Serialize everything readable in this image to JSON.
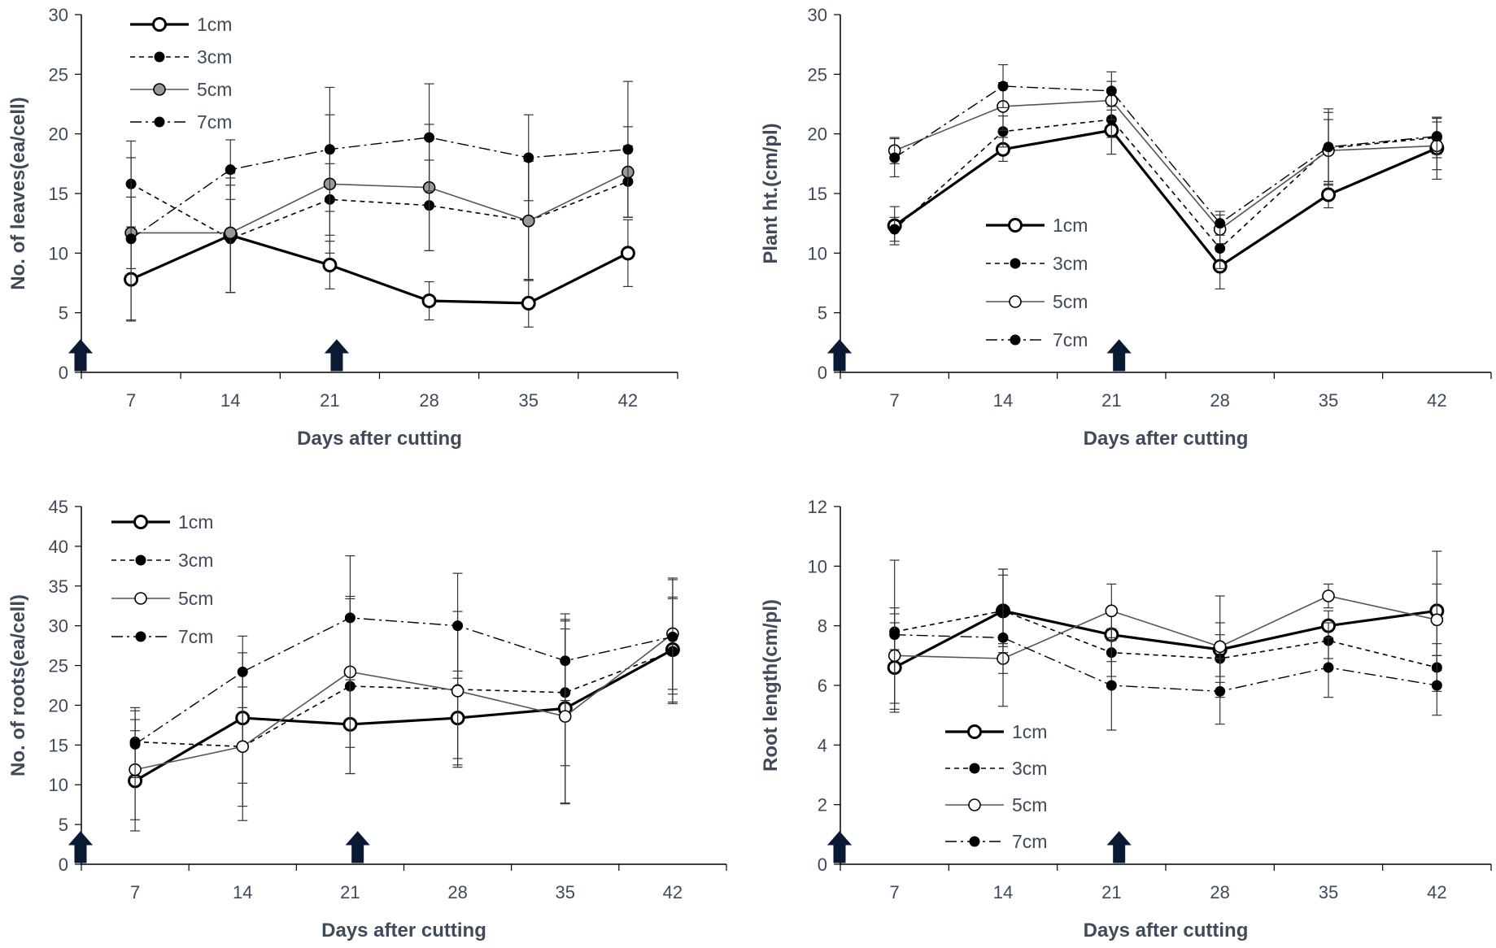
{
  "chart_data": [
    {
      "type": "line",
      "id": "leaves",
      "xlabel": "Days after cutting",
      "ylabel": "No. of leaves(ea/cell)",
      "categories": [
        "7",
        "14",
        "21",
        "28",
        "35",
        "42"
      ],
      "ylim": [
        0,
        30
      ],
      "yticks": [
        "0",
        "5",
        "10",
        "15",
        "20",
        "25",
        "30"
      ],
      "arrows_at_days": [
        0,
        21
      ],
      "legend_position": "top-left",
      "series": [
        {
          "name": "1cm",
          "style": "1cm",
          "values": [
            7.8,
            11.5,
            9.0,
            6.0,
            5.8,
            10.0
          ],
          "errors": [
            3.5,
            4.8,
            2.0,
            1.6,
            2.0,
            2.8
          ]
        },
        {
          "name": "3cm",
          "style": "3cm",
          "values": [
            15.8,
            11.2,
            14.5,
            14.0,
            12.7,
            16.0
          ],
          "errors": [
            3.6,
            4.5,
            3.0,
            3.8,
            5.0,
            3.0
          ]
        },
        {
          "name": "5cm",
          "style": "5cm",
          "values": [
            11.7,
            11.7,
            15.8,
            15.5,
            12.7,
            16.8
          ],
          "errors": [
            3.0,
            5.0,
            5.8,
            5.3,
            5.0,
            3.8
          ]
        },
        {
          "name": "7cm",
          "style": "7cm",
          "values": [
            11.2,
            17.0,
            18.7,
            19.7,
            18.0,
            18.7
          ],
          "errors": [
            6.8,
            2.5,
            5.2,
            4.5,
            3.6,
            5.7
          ]
        }
      ]
    },
    {
      "type": "line",
      "id": "height",
      "xlabel": "Days after cutting",
      "ylabel": "Plant ht.(cm/pl)",
      "categories": [
        "7",
        "14",
        "21",
        "28",
        "35",
        "42"
      ],
      "ylim": [
        0,
        30
      ],
      "yticks": [
        "0",
        "5",
        "10",
        "15",
        "20",
        "25",
        "30"
      ],
      "arrows_at_days": [
        0,
        21
      ],
      "legend_position": "middle-left",
      "series": [
        {
          "name": "1cm",
          "style": "1cm",
          "values": [
            12.3,
            18.7,
            20.3,
            8.9,
            14.9,
            18.8
          ],
          "errors": [
            1.6,
            1.0,
            2.0,
            1.9,
            1.1,
            2.6
          ]
        },
        {
          "name": "3cm",
          "style": "3cm",
          "values": [
            12.0,
            20.2,
            21.2,
            10.4,
            18.8,
            19.7
          ],
          "errors": [
            1.0,
            1.3,
            1.5,
            1.7,
            3.0,
            1.7
          ]
        },
        {
          "name": "5cm",
          "style": "5cm",
          "values": [
            18.6,
            22.3,
            22.8,
            12.0,
            18.6,
            19.0
          ],
          "errors": [
            1.1,
            2.0,
            1.6,
            1.2,
            2.6,
            2.0
          ]
        },
        {
          "name": "7cm",
          "style": "7cm",
          "values": [
            18.0,
            24.0,
            23.6,
            12.5,
            18.9,
            19.8
          ],
          "errors": [
            1.6,
            1.8,
            1.6,
            1.0,
            3.2,
            1.5
          ]
        }
      ]
    },
    {
      "type": "line",
      "id": "roots",
      "xlabel": "Days after cutting",
      "ylabel": "No. of roots(ea/cell)",
      "categories": [
        "7",
        "14",
        "21",
        "28",
        "35",
        "42"
      ],
      "ylim": [
        0,
        45
      ],
      "yticks": [
        "0",
        "5",
        "10",
        "15",
        "20",
        "25",
        "30",
        "35",
        "40",
        "45"
      ],
      "arrows_at_days": [
        0,
        21
      ],
      "legend_position": "top-left",
      "series": [
        {
          "name": "1cm",
          "style": "1cm",
          "values": [
            10.5,
            18.4,
            17.6,
            18.4,
            19.6,
            27.0
          ],
          "errors": [
            6.3,
            8.2,
            6.2,
            5.9,
            11.9,
            6.6
          ]
        },
        {
          "name": "3cm",
          "style": "3cm",
          "values": [
            15.4,
            14.8,
            22.4,
            22.0,
            21.6,
            26.8
          ],
          "errors": [
            4.3,
            9.3,
            11.0,
            9.8,
            9.2,
            6.6
          ]
        },
        {
          "name": "5cm",
          "style": "5cm",
          "values": [
            11.9,
            14.8,
            24.2,
            21.8,
            18.6,
            29.0
          ],
          "errors": [
            6.3,
            7.5,
            9.5,
            8.5,
            11.0,
            7.0
          ]
        },
        {
          "name": "7cm",
          "style": "7cm",
          "values": [
            15.1,
            24.2,
            31.0,
            30.0,
            25.6,
            28.6
          ],
          "errors": [
            4.2,
            4.5,
            7.8,
            6.6,
            5.0,
            7.2
          ]
        }
      ]
    },
    {
      "type": "line",
      "id": "rootlen",
      "xlabel": "Days after cutting",
      "ylabel": "Root length(cm/pl)",
      "categories": [
        "7",
        "14",
        "21",
        "28",
        "35",
        "42"
      ],
      "ylim": [
        0,
        12
      ],
      "yticks": [
        "0",
        "2",
        "4",
        "6",
        "8",
        "10",
        "12"
      ],
      "arrows_at_days": [
        0,
        21
      ],
      "legend_position": "bottom-left",
      "series": [
        {
          "name": "1cm",
          "style": "1cm",
          "values": [
            6.6,
            8.5,
            7.7,
            7.2,
            8.0,
            8.5
          ],
          "errors": [
            1.5,
            1.4,
            0.9,
            0.9,
            0.5,
            2.0
          ]
        },
        {
          "name": "3cm",
          "style": "3cm",
          "values": [
            7.8,
            8.5,
            7.1,
            6.9,
            7.5,
            6.6
          ],
          "errors": [
            0.6,
            1.2,
            0.8,
            0.8,
            0.6,
            0.8
          ]
        },
        {
          "name": "5cm",
          "style": "5cm",
          "values": [
            7.0,
            6.9,
            8.5,
            7.3,
            9.0,
            8.2
          ],
          "errors": [
            1.6,
            0.5,
            0.9,
            1.7,
            0.4,
            1.2
          ]
        },
        {
          "name": "7cm",
          "style": "7cm",
          "values": [
            7.7,
            7.6,
            6.0,
            5.8,
            6.6,
            6.0
          ],
          "errors": [
            2.5,
            2.3,
            1.5,
            1.1,
            1.0,
            1.0
          ]
        }
      ]
    }
  ]
}
